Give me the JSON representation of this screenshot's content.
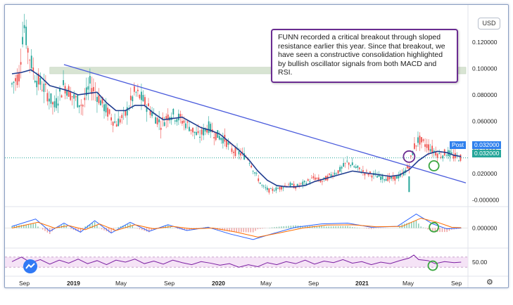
{
  "annotation": "FUNN recorded a critical breakout through sloped resistance earlier this year. Since that breakout, we have seen a constructive consolidation highlighted by bullish oscillator signals from both MACD and RSI.",
  "currency": "USD",
  "price_tags": {
    "post_label": "Post",
    "post_value": "0.032000",
    "last_value": "0.032000"
  },
  "icons": {
    "settings": "gear-icon",
    "logo": "tradingview-logo-icon"
  },
  "colors": {
    "candle_up": "#26a69a",
    "candle_down": "#ef5350",
    "moving_average": "#1f3c8f",
    "trendline": "#4a5bdc",
    "resistance_zone": "#d4e2cf",
    "highlight_circle": "#6a2c91",
    "signal_circle": "#3aa640",
    "macd_line": "#2962ff",
    "signal_line": "#ff6d00",
    "rsi_line": "#7b1fa2",
    "rsi_band": "#f2dcf4",
    "post_tag": "#2f80ed",
    "last_tag": "#26a69a"
  },
  "chart_data": [
    {
      "type": "candlestick",
      "panel": "price",
      "y_ticks": [
        "0.120000",
        "0.100000",
        "0.080000",
        "0.060000",
        "0.040000",
        "0.020000",
        "-0.000000"
      ],
      "ylim": [
        -0.004,
        0.142
      ],
      "x_ticks": [
        "Sep",
        "2019",
        "May",
        "Sep",
        "2020",
        "May",
        "Sep",
        "2021",
        "May",
        "Sep"
      ],
      "x_ticks_bold": [
        "2019",
        "2020",
        "2021"
      ],
      "series": [
        {
          "kind": "price",
          "points": [
            [
              0,
              0.088
            ],
            [
              6,
              0.095
            ],
            [
              10,
              0.135
            ],
            [
              14,
              0.112
            ],
            [
              20,
              0.093
            ],
            [
              28,
              0.084
            ],
            [
              36,
              0.071
            ],
            [
              44,
              0.088
            ],
            [
              52,
              0.078
            ],
            [
              60,
              0.072
            ],
            [
              66,
              0.088
            ],
            [
              72,
              0.08
            ],
            [
              80,
              0.068
            ],
            [
              88,
              0.058
            ],
            [
              96,
              0.065
            ],
            [
              104,
              0.082
            ],
            [
              110,
              0.077
            ],
            [
              118,
              0.067
            ],
            [
              126,
              0.058
            ],
            [
              134,
              0.066
            ],
            [
              142,
              0.062
            ],
            [
              150,
              0.056
            ],
            [
              158,
              0.048
            ],
            [
              166,
              0.056
            ],
            [
              172,
              0.05
            ],
            [
              180,
              0.046
            ],
            [
              186,
              0.038
            ],
            [
              194,
              0.035
            ],
            [
              200,
              0.032
            ],
            [
              206,
              0.02
            ],
            [
              212,
              0.01
            ],
            [
              218,
              0.007
            ],
            [
              226,
              0.009
            ],
            [
              234,
              0.012
            ],
            [
              240,
              0.01
            ],
            [
              248,
              0.013
            ],
            [
              256,
              0.017
            ],
            [
              262,
              0.014
            ],
            [
              270,
              0.019
            ],
            [
              278,
              0.023
            ],
            [
              284,
              0.029
            ],
            [
              290,
              0.025
            ],
            [
              298,
              0.021
            ],
            [
              306,
              0.019
            ],
            [
              314,
              0.017
            ],
            [
              322,
              0.016
            ],
            [
              330,
              0.019
            ],
            [
              336,
              0.026
            ],
            [
              340,
              0.04
            ],
            [
              344,
              0.046
            ],
            [
              348,
              0.043
            ],
            [
              352,
              0.041
            ],
            [
              356,
              0.038
            ],
            [
              362,
              0.034
            ],
            [
              368,
              0.036
            ],
            [
              374,
              0.033
            ],
            [
              380,
              0.032
            ]
          ]
        },
        {
          "kind": "moving_average",
          "points": [
            [
              0,
              0.096
            ],
            [
              8,
              0.097
            ],
            [
              16,
              0.099
            ],
            [
              24,
              0.094
            ],
            [
              32,
              0.087
            ],
            [
              40,
              0.085
            ],
            [
              48,
              0.083
            ],
            [
              56,
              0.08
            ],
            [
              64,
              0.081
            ],
            [
              72,
              0.082
            ],
            [
              80,
              0.074
            ],
            [
              88,
              0.068
            ],
            [
              96,
              0.068
            ],
            [
              104,
              0.072
            ],
            [
              112,
              0.072
            ],
            [
              120,
              0.066
            ],
            [
              128,
              0.061
            ],
            [
              136,
              0.062
            ],
            [
              144,
              0.063
            ],
            [
              152,
              0.059
            ],
            [
              160,
              0.055
            ],
            [
              168,
              0.053
            ],
            [
              176,
              0.05
            ],
            [
              184,
              0.044
            ],
            [
              192,
              0.038
            ],
            [
              200,
              0.031
            ],
            [
              208,
              0.022
            ],
            [
              216,
              0.015
            ],
            [
              224,
              0.011
            ],
            [
              232,
              0.01
            ],
            [
              240,
              0.01
            ],
            [
              248,
              0.011
            ],
            [
              256,
              0.014
            ],
            [
              264,
              0.016
            ],
            [
              272,
              0.018
            ],
            [
              280,
              0.02
            ],
            [
              288,
              0.022
            ],
            [
              296,
              0.021
            ],
            [
              304,
              0.02
            ],
            [
              312,
              0.019
            ],
            [
              320,
              0.018
            ],
            [
              328,
              0.019
            ],
            [
              336,
              0.023
            ],
            [
              344,
              0.03
            ],
            [
              352,
              0.035
            ],
            [
              360,
              0.037
            ],
            [
              368,
              0.036
            ],
            [
              374,
              0.034
            ],
            [
              380,
              0.033
            ]
          ]
        },
        {
          "kind": "trendline",
          "points": [
            [
              44,
              0.103
            ],
            [
              384,
              0.013
            ]
          ]
        },
        {
          "kind": "resistance_zone",
          "y_range": [
            0.096,
            0.101
          ],
          "x_range": [
            32,
            384
          ]
        },
        {
          "kind": "last_price_line",
          "y": 0.032
        }
      ],
      "markers": [
        {
          "kind": "breakout_circle",
          "x": 336,
          "y": 0.033
        },
        {
          "kind": "signal_circle",
          "x": 357,
          "y": 0.026
        }
      ]
    },
    {
      "type": "line",
      "panel": "MACD",
      "y_ticks": [
        "0.000000"
      ],
      "ylim": [
        -1,
        1
      ],
      "series": [
        {
          "name": "",
          "points": [
            [
              0,
              0.1
            ],
            [
              20,
              0.55
            ],
            [
              32,
              -0.2
            ],
            [
              44,
              0.3
            ],
            [
              58,
              -0.25
            ],
            [
              70,
              0.45
            ],
            [
              84,
              -0.3
            ],
            [
              100,
              0.35
            ],
            [
              116,
              -0.2
            ],
            [
              132,
              0.2
            ],
            [
              148,
              -0.15
            ],
            [
              166,
              0.05
            ],
            [
              184,
              -0.35
            ],
            [
              204,
              -0.7
            ],
            [
              220,
              -0.35
            ],
            [
              240,
              0.05
            ],
            [
              262,
              0.25
            ],
            [
              284,
              0.3
            ],
            [
              304,
              0.05
            ],
            [
              326,
              0.1
            ],
            [
              342,
              0.85
            ],
            [
              356,
              0.25
            ],
            [
              368,
              -0.05
            ],
            [
              380,
              0.0
            ]
          ]
        },
        {
          "name": "",
          "points": [
            [
              0,
              0.0
            ],
            [
              22,
              0.35
            ],
            [
              36,
              0.0
            ],
            [
              48,
              0.15
            ],
            [
              62,
              -0.1
            ],
            [
              74,
              0.25
            ],
            [
              88,
              -0.15
            ],
            [
              104,
              0.2
            ],
            [
              120,
              -0.05
            ],
            [
              136,
              0.1
            ],
            [
              152,
              -0.05
            ],
            [
              170,
              0.0
            ],
            [
              190,
              -0.25
            ],
            [
              208,
              -0.55
            ],
            [
              226,
              -0.3
            ],
            [
              246,
              0.0
            ],
            [
              266,
              0.18
            ],
            [
              288,
              0.2
            ],
            [
              308,
              0.08
            ],
            [
              330,
              0.1
            ],
            [
              346,
              0.6
            ],
            [
              360,
              0.35
            ],
            [
              372,
              0.05
            ],
            [
              380,
              0.02
            ]
          ]
        }
      ]
    },
    {
      "type": "line",
      "panel": "RSI",
      "y_ticks": [
        "50.00"
      ],
      "ylim": [
        0,
        100
      ],
      "band": [
        30,
        70
      ],
      "series": [
        {
          "name": "",
          "points": [
            [
              0,
              52
            ],
            [
              8,
              70
            ],
            [
              16,
              48
            ],
            [
              24,
              60
            ],
            [
              32,
              42
            ],
            [
              40,
              58
            ],
            [
              48,
              46
            ],
            [
              56,
              62
            ],
            [
              64,
              44
            ],
            [
              72,
              56
            ],
            [
              80,
              40
            ],
            [
              88,
              58
            ],
            [
              96,
              50
            ],
            [
              104,
              62
            ],
            [
              112,
              44
            ],
            [
              120,
              54
            ],
            [
              128,
              42
            ],
            [
              136,
              58
            ],
            [
              144,
              48
            ],
            [
              152,
              40
            ],
            [
              160,
              52
            ],
            [
              168,
              46
            ],
            [
              176,
              38
            ],
            [
              184,
              44
            ],
            [
              192,
              30
            ],
            [
              200,
              40
            ],
            [
              208,
              32
            ],
            [
              216,
              48
            ],
            [
              224,
              40
            ],
            [
              232,
              52
            ],
            [
              240,
              44
            ],
            [
              248,
              58
            ],
            [
              256,
              42
            ],
            [
              264,
              54
            ],
            [
              272,
              48
            ],
            [
              280,
              60
            ],
            [
              288,
              46
            ],
            [
              296,
              52
            ],
            [
              304,
              40
            ],
            [
              312,
              50
            ],
            [
              320,
              44
            ],
            [
              328,
              56
            ],
            [
              336,
              66
            ],
            [
              340,
              78
            ],
            [
              344,
              60
            ],
            [
              352,
              56
            ],
            [
              358,
              44
            ],
            [
              366,
              52
            ],
            [
              374,
              48
            ],
            [
              380,
              50
            ]
          ]
        }
      ],
      "markers": [
        {
          "kind": "signal_circle",
          "x": 356,
          "y": 36
        }
      ]
    }
  ]
}
